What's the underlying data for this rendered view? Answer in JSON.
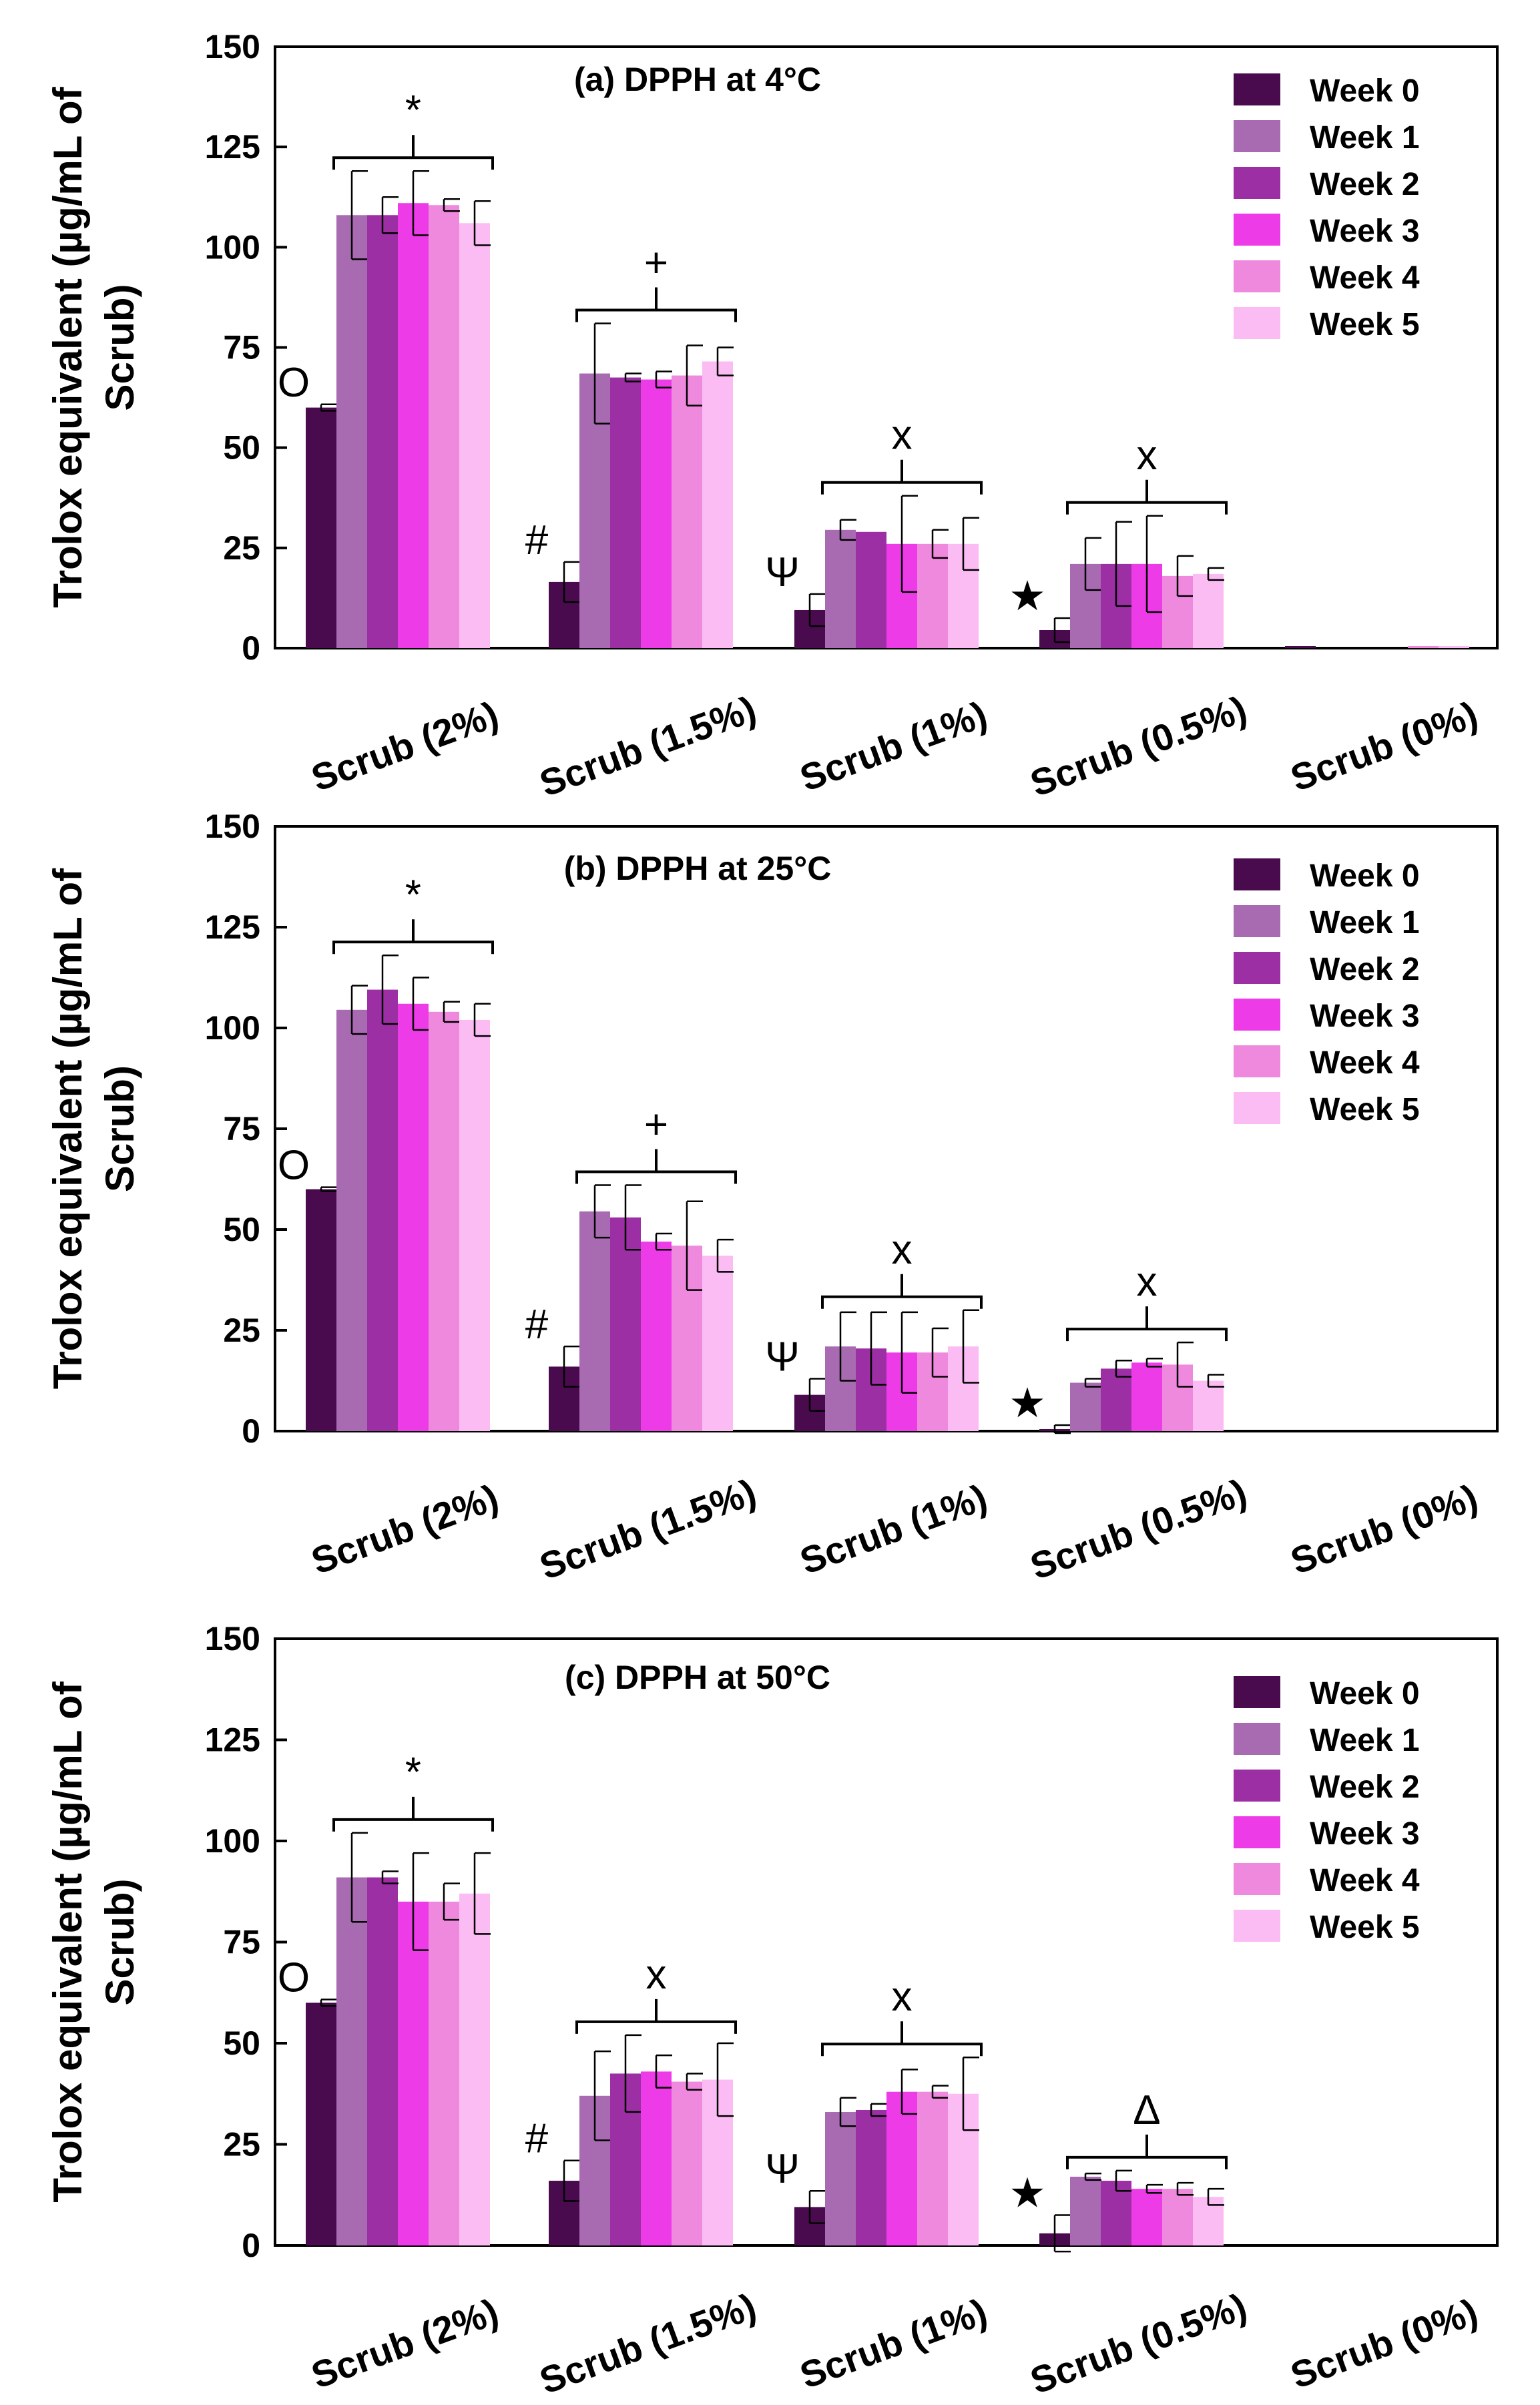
{
  "chart_data": [
    {
      "type": "bar",
      "title": "(a) DPPH at 4°C",
      "ylabel_line1": "Trolox equivalent (µg/mL of",
      "ylabel_line2": "Scrub)",
      "ylim": [
        0,
        150
      ],
      "yticks": [
        0,
        25,
        50,
        75,
        100,
        125,
        150
      ],
      "categories": [
        "Scrub (2%)",
        "Scrub (1.5%)",
        "Scrub (1%)",
        "Scrub (0.5%)",
        "Scrub (0%)"
      ],
      "series": [
        {
          "name": "Week 0",
          "color": "#4a0a4e",
          "values": [
            60,
            16.5,
            9.5,
            4.5,
            0.5
          ],
          "errors": [
            0.8,
            5,
            4,
            3,
            0
          ]
        },
        {
          "name": "Week 1",
          "color": "#a86bb2",
          "values": [
            108,
            68.5,
            29.5,
            21,
            0
          ],
          "errors": [
            11,
            12.5,
            2.5,
            6.5,
            0
          ]
        },
        {
          "name": "Week 2",
          "color": "#9c2fa4",
          "values": [
            108,
            67.5,
            29,
            21,
            0
          ],
          "errors": [
            4.5,
            1,
            0,
            10.5,
            0
          ]
        },
        {
          "name": "Week 3",
          "color": "#ee3be8",
          "values": [
            111,
            67,
            26,
            21,
            0
          ],
          "errors": [
            8,
            2,
            12,
            12,
            0
          ]
        },
        {
          "name": "Week 4",
          "color": "#ee89dd",
          "values": [
            110.5,
            68,
            26,
            18,
            0.5
          ],
          "errors": [
            1.5,
            7.5,
            3.5,
            5,
            0
          ]
        },
        {
          "name": "Week 5",
          "color": "#fbbcf3",
          "values": [
            106,
            71.5,
            26,
            18.5,
            0.5
          ],
          "errors": [
            5.5,
            3.5,
            6.5,
            1.5,
            0
          ]
        }
      ],
      "annotations": {
        "group_marks": [
          "*",
          "+",
          "x",
          "x"
        ],
        "week0_marks": [
          "O",
          "#",
          "Ψ",
          "★"
        ]
      }
    },
    {
      "type": "bar",
      "title": "(b) DPPH at 25°C",
      "ylabel_line1": "Trolox equivalent (µg/mL of",
      "ylabel_line2": "Scrub)",
      "ylim": [
        0,
        150
      ],
      "yticks": [
        0,
        25,
        50,
        75,
        100,
        125,
        150
      ],
      "categories": [
        "Scrub (2%)",
        "Scrub (1.5%)",
        "Scrub (1%)",
        "Scrub (0.5%)",
        "Scrub (0%)"
      ],
      "series": [
        {
          "name": "Week 0",
          "color": "#4a0a4e",
          "values": [
            60,
            16,
            9,
            0.5,
            0
          ],
          "errors": [
            0.5,
            5,
            4,
            1,
            0
          ]
        },
        {
          "name": "Week 1",
          "color": "#a86bb2",
          "values": [
            104.5,
            54.5,
            21,
            12,
            0
          ],
          "errors": [
            6,
            6.5,
            8.5,
            1,
            0
          ]
        },
        {
          "name": "Week 2",
          "color": "#9c2fa4",
          "values": [
            109.5,
            53,
            20.5,
            15.5,
            0
          ],
          "errors": [
            8.5,
            8,
            9,
            2,
            0
          ]
        },
        {
          "name": "Week 3",
          "color": "#ee3be8",
          "values": [
            106,
            47,
            19.5,
            17,
            0
          ],
          "errors": [
            6.5,
            2,
            10,
            1,
            0
          ]
        },
        {
          "name": "Week 4",
          "color": "#ee89dd",
          "values": [
            104,
            46,
            19.5,
            16.5,
            0
          ],
          "errors": [
            2.5,
            11,
            6,
            5.5,
            0
          ]
        },
        {
          "name": "Week 5",
          "color": "#fbbcf3",
          "values": [
            102,
            43.5,
            21,
            12.5,
            0
          ],
          "errors": [
            4,
            4,
            9,
            1.5,
            0
          ]
        }
      ],
      "annotations": {
        "group_marks": [
          "*",
          "+",
          "x",
          "x"
        ],
        "week0_marks": [
          "O",
          "#",
          "Ψ",
          "★"
        ]
      }
    },
    {
      "type": "bar",
      "title": "(c) DPPH at 50°C",
      "ylabel_line1": "Trolox equivalent (µg/mL of",
      "ylabel_line2": "Scrub)",
      "ylim": [
        0,
        150
      ],
      "yticks": [
        0,
        25,
        50,
        75,
        100,
        125,
        150
      ],
      "categories": [
        "Scrub (2%)",
        "Scrub (1.5%)",
        "Scrub (1%)",
        "Scrub (0.5%)",
        "Scrub (0%)"
      ],
      "series": [
        {
          "name": "Week 0",
          "color": "#4a0a4e",
          "values": [
            60,
            16,
            9.5,
            3,
            0
          ],
          "errors": [
            0.8,
            5,
            4,
            4.5,
            0
          ]
        },
        {
          "name": "Week 1",
          "color": "#a86bb2",
          "values": [
            91,
            37,
            33,
            17,
            0
          ],
          "errors": [
            11,
            11,
            3.5,
            0.8,
            0
          ]
        },
        {
          "name": "Week 2",
          "color": "#9c2fa4",
          "values": [
            91,
            42.5,
            33.5,
            16,
            0
          ],
          "errors": [
            1.5,
            9.5,
            1.5,
            2.5,
            0
          ]
        },
        {
          "name": "Week 3",
          "color": "#ee3be8",
          "values": [
            85,
            43,
            38,
            14,
            0
          ],
          "errors": [
            12,
            4,
            5.5,
            1,
            0
          ]
        },
        {
          "name": "Week 4",
          "color": "#ee89dd",
          "values": [
            85,
            40.5,
            38,
            14,
            0
          ],
          "errors": [
            4.5,
            2,
            1.5,
            1.5,
            0
          ]
        },
        {
          "name": "Week 5",
          "color": "#fbbcf3",
          "values": [
            87,
            41,
            37.5,
            12,
            0
          ],
          "errors": [
            10,
            9,
            9,
            2,
            0
          ]
        }
      ],
      "annotations": {
        "group_marks": [
          "*",
          "x",
          "x",
          "Δ"
        ],
        "week0_marks": [
          "O",
          "#",
          "Ψ",
          "★"
        ]
      }
    }
  ]
}
